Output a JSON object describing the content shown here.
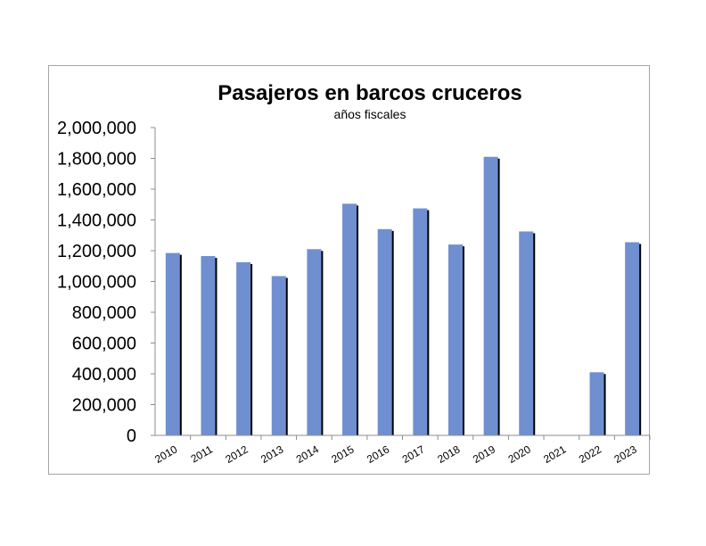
{
  "chart_data": {
    "type": "bar",
    "title": "Pasajeros en barcos cruceros",
    "subtitle": "años fiscales",
    "xlabel": "",
    "ylabel": "",
    "categories": [
      "2010",
      "2011",
      "2012",
      "2013",
      "2014",
      "2015",
      "2016",
      "2017",
      "2018",
      "2019",
      "2020",
      "2021",
      "2022",
      "2023"
    ],
    "values": [
      1185000,
      1165000,
      1125000,
      1035000,
      1210000,
      1505000,
      1340000,
      1475000,
      1240000,
      1810000,
      1325000,
      0,
      410000,
      1255000
    ],
    "yticks": [
      "0",
      "200,000",
      "400,000",
      "600,000",
      "800,000",
      "1,000,000",
      "1,200,000",
      "1,400,000",
      "1,600,000",
      "1,800,000",
      "2,000,000"
    ],
    "ylim": [
      0,
      2000000
    ],
    "grid": false,
    "legend": "none",
    "colors": {
      "bar": "#6f8fd0",
      "shadow": "#000000",
      "axis": "#8c8c8c"
    }
  }
}
